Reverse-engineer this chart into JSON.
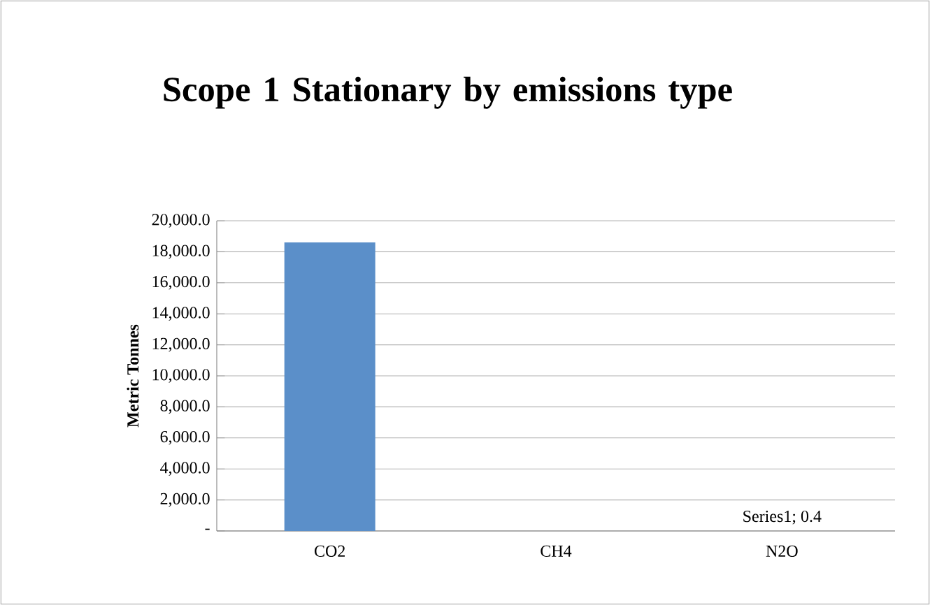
{
  "chart_data": {
    "type": "bar",
    "title": "Scope 1 Stationary by emissions type",
    "ylabel": "Metric Tonnes",
    "categories": [
      "CO2",
      "CH4",
      "N2O"
    ],
    "values": [
      18600,
      0,
      0.4
    ],
    "color": "#5b8fc9",
    "value_labels": [
      null,
      null,
      "Series1; 0.4"
    ],
    "ylim": [
      0,
      20000
    ],
    "yticks": [
      {
        "value": 0,
        "label": "-"
      },
      {
        "value": 2000,
        "label": "2,000.0"
      },
      {
        "value": 4000,
        "label": "4,000.0"
      },
      {
        "value": 6000,
        "label": "6,000.0"
      },
      {
        "value": 8000,
        "label": "8,000.0"
      },
      {
        "value": 10000,
        "label": "10,000.0"
      },
      {
        "value": 12000,
        "label": "12,000.0"
      },
      {
        "value": 14000,
        "label": "14,000.0"
      },
      {
        "value": 16000,
        "label": "16,000.0"
      },
      {
        "value": 18000,
        "label": "18,000.0"
      },
      {
        "value": 20000,
        "label": "20,000.0"
      }
    ],
    "grid": "y"
  }
}
